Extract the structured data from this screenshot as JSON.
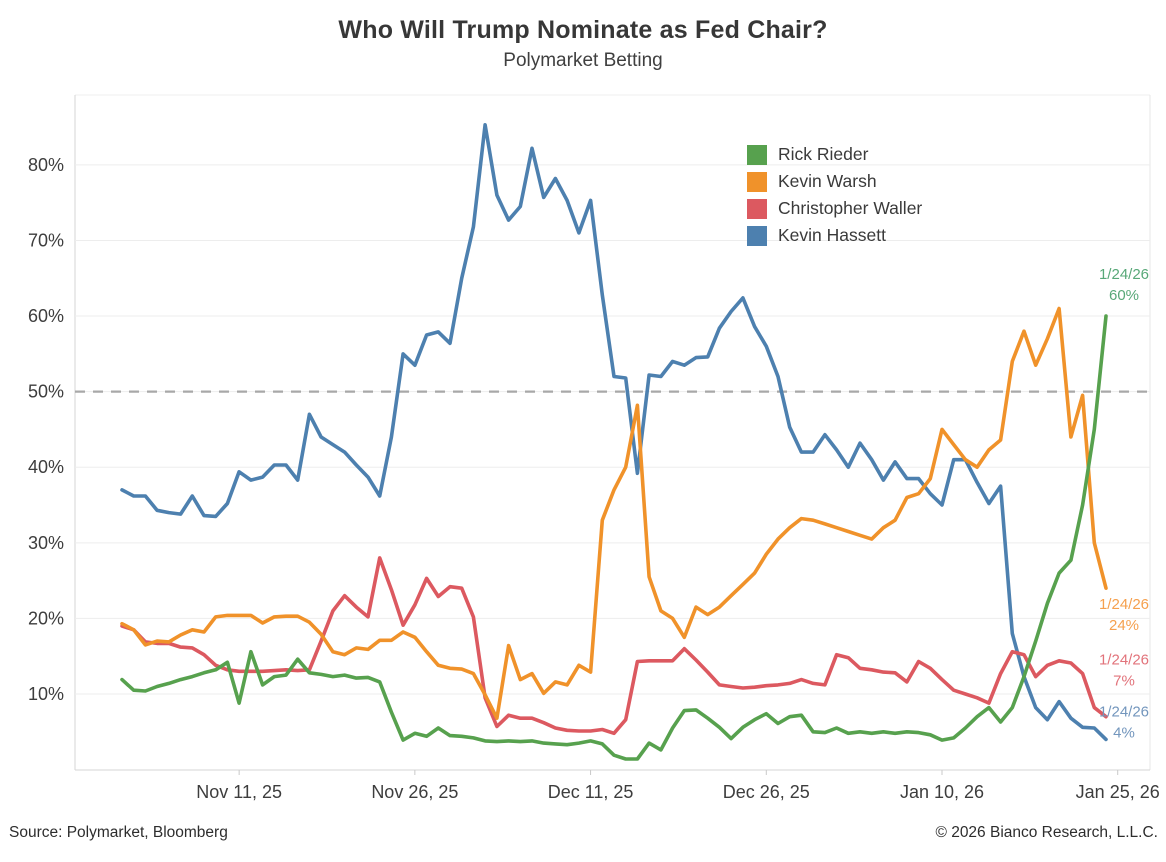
{
  "header": {
    "title": "Who Will Trump Nominate as Fed Chair?",
    "subtitle": "Polymarket Betting"
  },
  "footer": {
    "source": "Source: Polymarket, Bloomberg",
    "copyright": "© 2026 Bianco Research, L.L.C."
  },
  "chart_data": {
    "type": "line",
    "title": "Who Will Trump Nominate as Fed Chair?",
    "subtitle": "Polymarket Betting",
    "xlabel": "",
    "ylabel": "",
    "grid": true,
    "legend_position": "top-right",
    "ylim": [
      0,
      88
    ],
    "y_ticks": [
      {
        "value": 10,
        "label": "10%"
      },
      {
        "value": 20,
        "label": "20%"
      },
      {
        "value": 30,
        "label": "30%"
      },
      {
        "value": 40,
        "label": "40%"
      },
      {
        "value": 50,
        "label": "50%"
      },
      {
        "value": 60,
        "label": "60%"
      },
      {
        "value": 70,
        "label": "70%"
      },
      {
        "value": 80,
        "label": "80%"
      }
    ],
    "threshold_line": {
      "value": 50,
      "style": "dashed",
      "color": "#a8a8a8"
    },
    "x_range": {
      "start": "Nov 1, 25",
      "end": "Jan 24, 26",
      "interval": "daily"
    },
    "n_points": 85,
    "x_ticks": [
      {
        "day_index": 10,
        "label": "Nov 11, 25"
      },
      {
        "day_index": 25,
        "label": "Nov 26, 25"
      },
      {
        "day_index": 40,
        "label": "Dec 11, 25"
      },
      {
        "day_index": 55,
        "label": "Dec 26, 25"
      },
      {
        "day_index": 70,
        "label": "Jan 10, 26"
      },
      {
        "day_index": 85,
        "label": "Jan 25, 26"
      }
    ],
    "series": [
      {
        "name": "Rick Rieder",
        "key": "rick-rieder",
        "color": "#57a14e",
        "label_color": "#58a878",
        "end_label": {
          "date": "1/24/26",
          "value": "60%"
        },
        "values": [
          11.9,
          10.5,
          10.4,
          11,
          11.4,
          11.9,
          12.3,
          12.8,
          13.2,
          14.2,
          8.8,
          15.6,
          11.2,
          12.3,
          12.5,
          14.6,
          12.8,
          12.6,
          12.3,
          12.5,
          12.1,
          12.2,
          11.6,
          7.6,
          3.9,
          4.8,
          4.4,
          5.5,
          4.5,
          4.4,
          4.2,
          3.8,
          3.7,
          3.8,
          3.7,
          3.8,
          3.5,
          3.4,
          3.3,
          3.5,
          3.8,
          3.4,
          1.9,
          1.4,
          1.4,
          3.5,
          2.6,
          5.5,
          7.8,
          7.9,
          6.8,
          5.6,
          4.1,
          5.6,
          6.6,
          7.4,
          6.1,
          7,
          7.2,
          5,
          4.9,
          5.5,
          4.8,
          5,
          4.8,
          5,
          4.8,
          5,
          4.9,
          4.6,
          3.9,
          4.2,
          5.5,
          7,
          8.2,
          6.3,
          8.2,
          12.3,
          17,
          22,
          26,
          27.7,
          35,
          45,
          60
        ]
      },
      {
        "name": "Kevin Warsh",
        "key": "kevin-warsh",
        "color": "#f0922a",
        "label_color": "#f5a04e",
        "end_label": {
          "date": "1/24/26",
          "value": "24%"
        },
        "values": [
          19.3,
          18.5,
          16.5,
          17,
          16.9,
          17.8,
          18.5,
          18.2,
          20.2,
          20.4,
          20.4,
          20.4,
          19.4,
          20.2,
          20.3,
          20.3,
          19.5,
          17.9,
          15.6,
          15.2,
          16.1,
          15.9,
          17.1,
          17.1,
          18.2,
          17.5,
          15.6,
          13.8,
          13.4,
          13.3,
          12.7,
          9.9,
          6.8,
          16.4,
          11.9,
          12.7,
          10.1,
          11.6,
          11.2,
          13.8,
          12.9,
          33,
          37,
          40,
          48.2,
          25.5,
          21,
          20,
          17.5,
          21.5,
          20.5,
          21.5,
          23,
          24.5,
          26,
          28.5,
          30.5,
          32,
          33.2,
          33,
          32.5,
          32,
          31.5,
          31,
          30.5,
          32,
          33,
          36,
          36.5,
          38.5,
          45,
          43,
          41,
          40,
          42.3,
          43.6,
          54,
          58,
          53.5,
          57,
          61,
          44,
          49.5,
          30,
          24
        ]
      },
      {
        "name": "Christopher Waller",
        "key": "christopher-waller",
        "color": "#dc5960",
        "label_color": "#e2737b",
        "end_label": {
          "date": "1/24/26",
          "value": "7%"
        },
        "values": [
          19,
          18.5,
          16.9,
          16.7,
          16.7,
          16.2,
          16.1,
          15.2,
          13.8,
          13.2,
          13,
          13,
          13,
          13.1,
          13.2,
          13.1,
          13.2,
          17,
          21,
          23,
          21.5,
          20.2,
          28,
          23.8,
          19.1,
          21.8,
          25.3,
          22.9,
          24.2,
          24,
          20.2,
          9.5,
          5.7,
          7.2,
          6.8,
          6.8,
          6.2,
          5.5,
          5.2,
          5.1,
          5.1,
          5.3,
          4.8,
          6.6,
          14.3,
          14.4,
          14.4,
          14.4,
          16,
          14.5,
          12.9,
          11.2,
          11,
          10.8,
          10.9,
          11.1,
          11.2,
          11.4,
          11.9,
          11.4,
          11.2,
          15.2,
          14.8,
          13.4,
          13.2,
          12.9,
          12.8,
          11.6,
          14.3,
          13.4,
          11.9,
          10.5,
          10,
          9.5,
          8.8,
          12.7,
          15.6,
          15.2,
          12.3,
          13.8,
          14.4,
          14.1,
          12.7,
          8.2,
          7
        ]
      },
      {
        "name": "Kevin Hassett",
        "key": "kevin-hassett",
        "color": "#4d80af",
        "label_color": "#7396bd",
        "end_label": {
          "date": "1/24/26",
          "value": "4%"
        },
        "values": [
          37,
          36.2,
          36.2,
          34.3,
          34,
          33.8,
          36.2,
          33.6,
          33.5,
          35.2,
          39.4,
          38.3,
          38.7,
          40.3,
          40.3,
          38.3,
          47,
          44,
          43,
          42,
          40.3,
          38.7,
          36.2,
          44,
          55,
          53.5,
          57.5,
          57.9,
          56.4,
          65,
          71.8,
          85.3,
          76,
          72.7,
          74.5,
          82.2,
          75.7,
          78.2,
          75.3,
          71,
          75.3,
          62.8,
          52,
          51.8,
          39.2,
          52.2,
          52,
          54,
          53.5,
          54.5,
          54.6,
          58.4,
          60.6,
          62.4,
          58.6,
          56,
          52,
          45.3,
          42,
          42,
          44.3,
          42.3,
          40,
          43.2,
          41,
          38.3,
          40.7,
          38.5,
          38.5,
          36.5,
          35,
          41,
          41,
          38,
          35.2,
          37.5,
          18,
          12.3,
          8.2,
          6.6,
          9,
          6.8,
          5.6,
          5.5,
          4
        ]
      }
    ]
  }
}
